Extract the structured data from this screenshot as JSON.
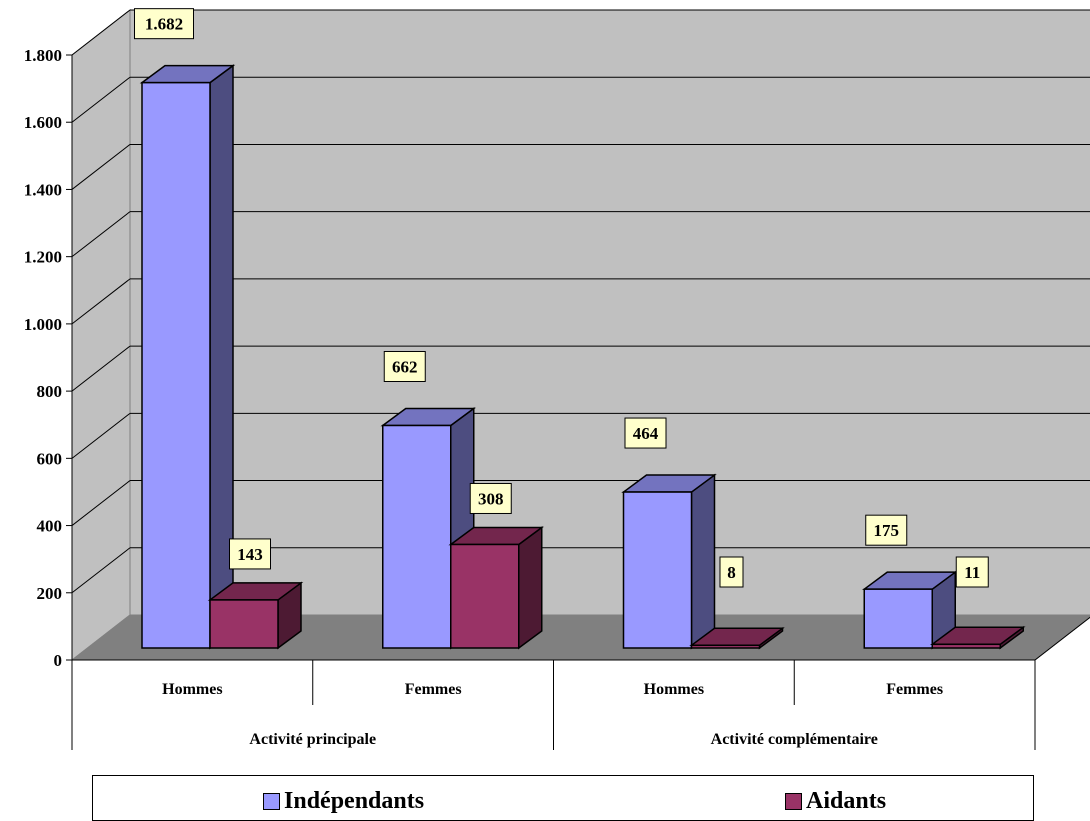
{
  "chart_data": {
    "type": "bar",
    "groups": [
      {
        "label": "Activité principale",
        "categories": [
          "Hommes",
          "Femmes"
        ]
      },
      {
        "label": "Activité complémentaire",
        "categories": [
          "Hommes",
          "Femmes"
        ]
      }
    ],
    "categories": [
      "Hommes",
      "Femmes",
      "Hommes",
      "Femmes"
    ],
    "series": [
      {
        "name": "Indépendants",
        "values": [
          1682,
          662,
          464,
          175
        ],
        "labels": [
          "1.682",
          "662",
          "464",
          "175"
        ],
        "color": "#9999ff"
      },
      {
        "name": "Aidants",
        "values": [
          143,
          308,
          8,
          11
        ],
        "labels": [
          "143",
          "308",
          "8",
          "11"
        ],
        "color": "#993366"
      }
    ],
    "ylim": [
      0,
      1800
    ],
    "yticks": [
      0,
      200,
      400,
      600,
      800,
      1000,
      1200,
      1400,
      1600,
      1800
    ],
    "ytick_labels": [
      "0",
      "200",
      "400",
      "600",
      "800",
      "1.000",
      "1.200",
      "1.400",
      "1.600",
      "1.800"
    ],
    "grid": true,
    "legend_position": "bottom",
    "style": "3d-column"
  }
}
